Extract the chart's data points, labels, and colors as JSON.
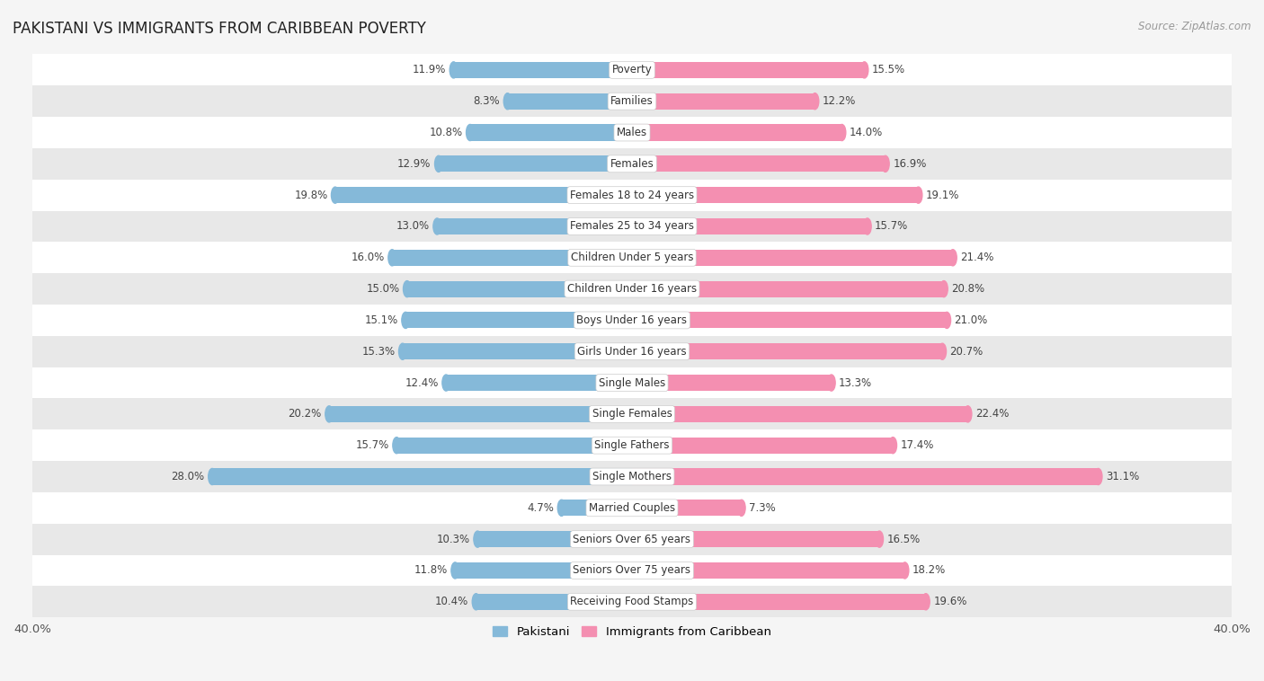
{
  "title": "PAKISTANI VS IMMIGRANTS FROM CARIBBEAN POVERTY",
  "source": "Source: ZipAtlas.com",
  "categories": [
    "Poverty",
    "Families",
    "Males",
    "Females",
    "Females 18 to 24 years",
    "Females 25 to 34 years",
    "Children Under 5 years",
    "Children Under 16 years",
    "Boys Under 16 years",
    "Girls Under 16 years",
    "Single Males",
    "Single Females",
    "Single Fathers",
    "Single Mothers",
    "Married Couples",
    "Seniors Over 65 years",
    "Seniors Over 75 years",
    "Receiving Food Stamps"
  ],
  "pakistani": [
    11.9,
    8.3,
    10.8,
    12.9,
    19.8,
    13.0,
    16.0,
    15.0,
    15.1,
    15.3,
    12.4,
    20.2,
    15.7,
    28.0,
    4.7,
    10.3,
    11.8,
    10.4
  ],
  "caribbean": [
    15.5,
    12.2,
    14.0,
    16.9,
    19.1,
    15.7,
    21.4,
    20.8,
    21.0,
    20.7,
    13.3,
    22.4,
    17.4,
    31.1,
    7.3,
    16.5,
    18.2,
    19.6
  ],
  "pakistani_color": "#85b9d9",
  "caribbean_color": "#f48fb1",
  "background_color": "#f5f5f5",
  "row_light_color": "#ffffff",
  "row_dark_color": "#e8e8e8",
  "xlim": 40.0,
  "bar_height": 0.52,
  "legend_labels": [
    "Pakistani",
    "Immigrants from Caribbean"
  ],
  "label_fontsize": 8.5,
  "title_fontsize": 12,
  "source_fontsize": 8.5
}
